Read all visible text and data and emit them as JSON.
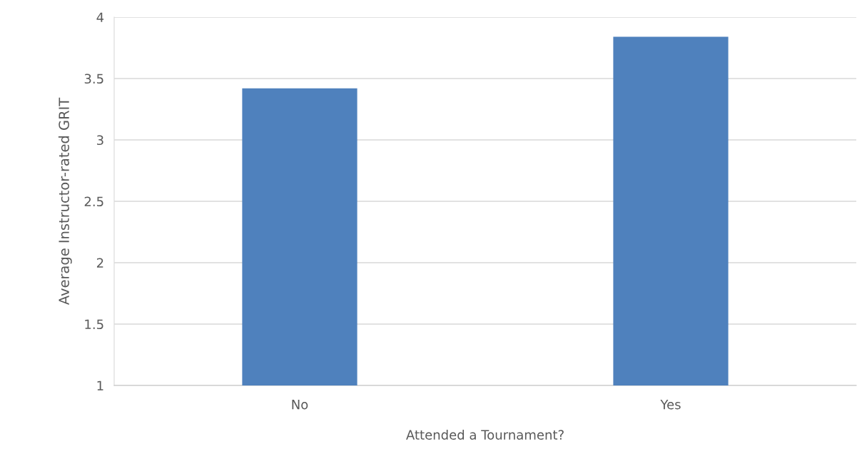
{
  "chart_data": {
    "type": "bar",
    "xlabel": "Attended a Tournament?",
    "ylabel": "Average Instructor-rated GRIT",
    "categories": [
      "No",
      "Yes"
    ],
    "values": [
      3.42,
      3.84
    ],
    "color": "#4f81bd",
    "ylim": [
      1,
      4
    ],
    "yticks": [
      1,
      1.5,
      2,
      2.5,
      3,
      3.5,
      4
    ],
    "grid": "y"
  }
}
